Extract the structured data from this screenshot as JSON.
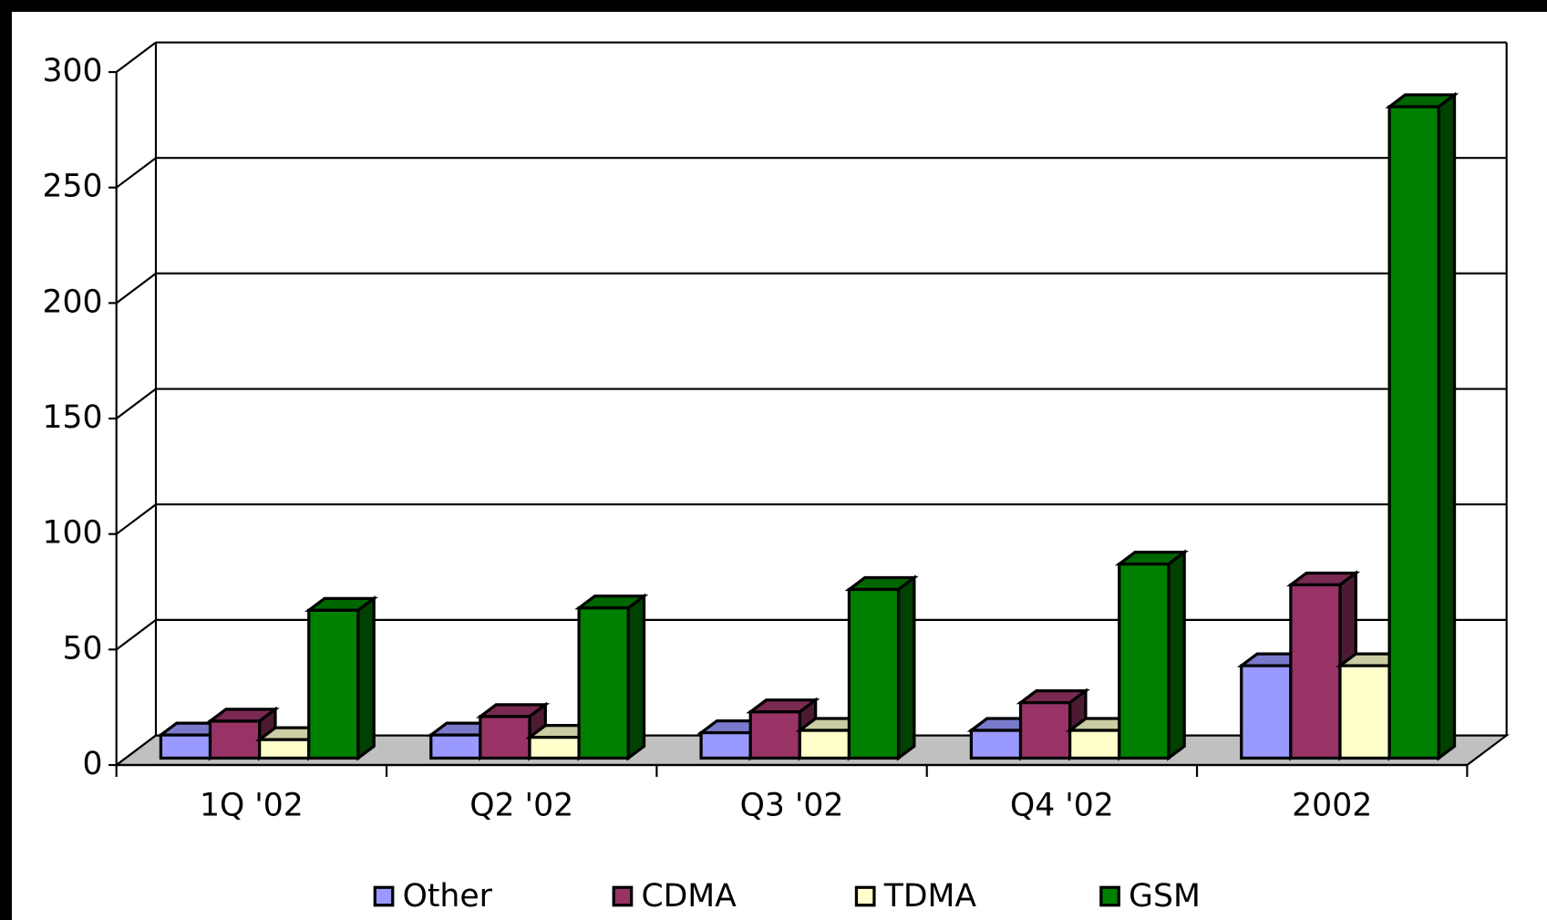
{
  "chart_data": {
    "type": "bar3d",
    "categories": [
      "1Q '02",
      "Q2 '02",
      "Q3 '02",
      "Q4 '02",
      "2002"
    ],
    "series": [
      {
        "name": "Other",
        "color": "#9999ff",
        "values": [
          10,
          10,
          11,
          12,
          40
        ]
      },
      {
        "name": "CDMA",
        "color": "#993366",
        "values": [
          16,
          18,
          20,
          24,
          75
        ]
      },
      {
        "name": "TDMA",
        "color": "#ffffcc",
        "values": [
          8,
          9,
          12,
          12,
          40
        ]
      },
      {
        "name": "GSM",
        "color": "#008000",
        "values": [
          64,
          65,
          73,
          84,
          282
        ]
      }
    ],
    "ylim": [
      0,
      300
    ],
    "yticks": [
      0,
      50,
      100,
      150,
      200,
      250,
      300
    ],
    "grid": true,
    "legend": "bottom"
  }
}
